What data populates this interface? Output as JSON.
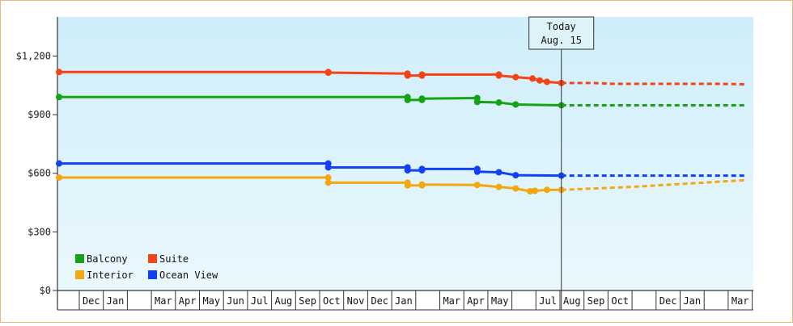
{
  "chart_data": {
    "type": "line",
    "title": "",
    "xlabel": "",
    "ylabel": "",
    "ylim": [
      0,
      1400
    ],
    "y_ticks": [
      "$0",
      "$300",
      "$600",
      "$900",
      "$1,200"
    ],
    "y_tick_values": [
      0,
      300,
      600,
      900,
      1200
    ],
    "x_tick_labels": [
      "Dec",
      "Jan",
      "",
      "Mar",
      "Apr",
      "May",
      "Jun",
      "Jul",
      "Aug",
      "Sep",
      "Oct",
      "Nov",
      "Dec",
      "Jan",
      "",
      "Mar",
      "Apr",
      "May",
      "",
      "Jul",
      "Aug",
      "Sep",
      "Oct",
      "",
      "Dec",
      "Jan",
      "",
      "Mar"
    ],
    "x_range": [
      0,
      28.6
    ],
    "grid": false,
    "legend_placement": "bottom-left",
    "today_index": 20.9,
    "today_label": "Today",
    "today_date": "Aug. 15",
    "colors": {
      "background_top": "#cfeefa",
      "background_bottom": "#eaf8fd",
      "frame": "#e8b878",
      "axis": "#333333"
    },
    "series": [
      {
        "name": "Suite",
        "color": "#f54314",
        "points": [
          [
            0,
            1118
          ],
          [
            11.2,
            1118
          ],
          [
            11.2,
            1115
          ],
          [
            14.5,
            1110
          ],
          [
            14.5,
            1100
          ],
          [
            15.1,
            1100
          ],
          [
            15.1,
            1105
          ],
          [
            18.3,
            1105
          ],
          [
            18.3,
            1100
          ],
          [
            19.0,
            1092
          ],
          [
            19.7,
            1085
          ],
          [
            20.0,
            1075
          ],
          [
            20.3,
            1068
          ],
          [
            20.9,
            1062
          ]
        ],
        "forecast": [
          [
            20.9,
            1062
          ],
          [
            22.2,
            1062
          ],
          [
            23.0,
            1058
          ],
          [
            27.3,
            1058
          ],
          [
            28.6,
            1055
          ]
        ]
      },
      {
        "name": "Balcony",
        "color": "#15a313",
        "points": [
          [
            0,
            990
          ],
          [
            14.5,
            990
          ],
          [
            14.5,
            975
          ],
          [
            15.1,
            975
          ],
          [
            15.1,
            982
          ],
          [
            17.4,
            985
          ],
          [
            17.4,
            965
          ],
          [
            18.3,
            962
          ],
          [
            19.0,
            952
          ],
          [
            20.9,
            948
          ]
        ],
        "forecast": [
          [
            20.9,
            948
          ],
          [
            28.6,
            948
          ]
        ]
      },
      {
        "name": "Ocean View",
        "color": "#1440f5",
        "points": [
          [
            0,
            650
          ],
          [
            11.2,
            650
          ],
          [
            11.2,
            630
          ],
          [
            14.5,
            630
          ],
          [
            14.5,
            615
          ],
          [
            15.1,
            615
          ],
          [
            15.1,
            622
          ],
          [
            17.4,
            622
          ],
          [
            17.4,
            608
          ],
          [
            18.3,
            605
          ],
          [
            19.0,
            590
          ],
          [
            20.9,
            588
          ]
        ],
        "forecast": [
          [
            20.9,
            588
          ],
          [
            28.6,
            588
          ]
        ]
      },
      {
        "name": "Interior",
        "color": "#f5a711",
        "points": [
          [
            0,
            578
          ],
          [
            11.2,
            578
          ],
          [
            11.2,
            552
          ],
          [
            14.5,
            552
          ],
          [
            14.5,
            538
          ],
          [
            15.1,
            538
          ],
          [
            15.1,
            542
          ],
          [
            17.4,
            540
          ],
          [
            18.3,
            530
          ],
          [
            19.0,
            522
          ],
          [
            19.6,
            508
          ],
          [
            19.8,
            510
          ],
          [
            20.3,
            515
          ],
          [
            20.9,
            515
          ]
        ],
        "forecast": [
          [
            20.9,
            515
          ],
          [
            23.8,
            530
          ],
          [
            28.6,
            565
          ]
        ]
      }
    ]
  }
}
